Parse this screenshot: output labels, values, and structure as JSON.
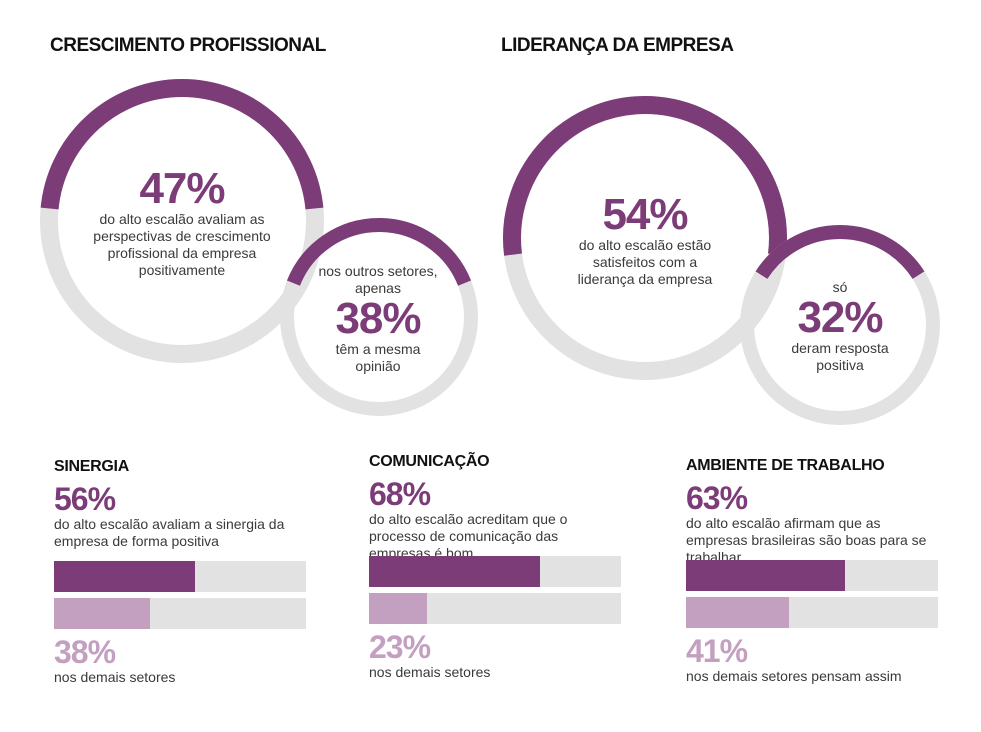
{
  "colors": {
    "primary": "#7b3c78",
    "secondary": "#c39fc0",
    "track": "#e2e2e2"
  },
  "growth": {
    "title": "CRESCIMENTO PROFISSIONAL",
    "main": {
      "value": "47%",
      "fraction": 0.47,
      "text": "do alto escalão avaliam as perspectivas de crescimento profissional da empresa positivamente"
    },
    "other": {
      "pre": "nos outros setores, apenas",
      "value": "38%",
      "fraction": 0.38,
      "post": "têm a mesma opinião"
    }
  },
  "leadership": {
    "title": "LIDERANÇA DA EMPRESA",
    "main": {
      "value": "54%",
      "fraction": 0.54,
      "text": "do alto escalão estão satisfeitos com a liderança da empresa"
    },
    "other": {
      "pre": "só",
      "value": "32%",
      "fraction": 0.32,
      "post": "deram resposta positiva"
    }
  },
  "bars": [
    {
      "title": "SINERGIA",
      "value": "56%",
      "fraction": 0.56,
      "desc": "do alto escalão avaliam a sinergia da empresa de forma positiva",
      "other_value": "38%",
      "other_fraction": 0.38,
      "other_desc": "nos demais setores"
    },
    {
      "title": "COMUNICAÇÃO",
      "value": "68%",
      "fraction": 0.68,
      "desc": "do alto escalão acreditam que o processo de comunicação das empresas é bom",
      "other_value": "23%",
      "other_fraction": 0.23,
      "other_desc": "nos demais setores"
    },
    {
      "title": "AMBIENTE DE TRABALHO",
      "value": "63%",
      "fraction": 0.63,
      "desc": "do alto escalão afirmam que as empresas brasileiras são boas para se trabalhar",
      "other_value": "41%",
      "other_fraction": 0.41,
      "other_desc": "nos demais setores pensam assim"
    }
  ],
  "chart_data": [
    {
      "type": "pie",
      "title": "CRESCIMENTO PROFISSIONAL",
      "categories": [
        "alto escalão",
        "outros setores"
      ],
      "values": [
        47,
        38
      ]
    },
    {
      "type": "pie",
      "title": "LIDERANÇA DA EMPRESA",
      "categories": [
        "alto escalão",
        "outros setores"
      ],
      "values": [
        54,
        32
      ]
    },
    {
      "type": "bar",
      "title": "Sinergia, Comunicação, Ambiente de trabalho",
      "categories": [
        "SINERGIA",
        "COMUNICAÇÃO",
        "AMBIENTE DE TRABALHO"
      ],
      "series": [
        {
          "name": "alto escalão",
          "values": [
            56,
            68,
            63
          ]
        },
        {
          "name": "demais setores",
          "values": [
            38,
            23,
            41
          ]
        }
      ],
      "ylim": [
        0,
        100
      ]
    }
  ]
}
